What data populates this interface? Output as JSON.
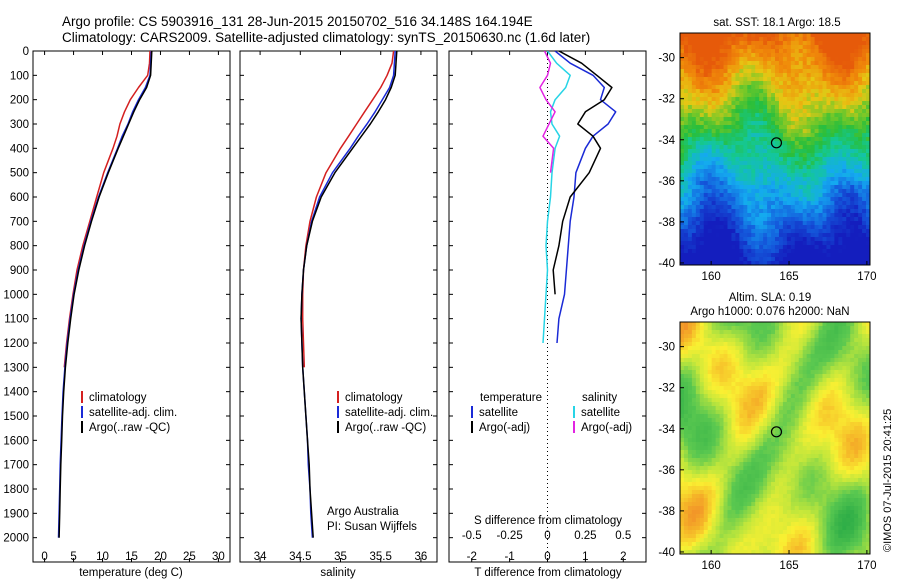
{
  "header": {
    "line1": "Argo profile: CS 5903916_131 28-Jun-2015 20150702_516 34.148S 164.194E",
    "line2": "Climatology: CARS2009. Satellite-adjusted climatology: synTS_20150630.nc (1.6d later)"
  },
  "chart_data": [
    {
      "type": "line",
      "id": "temperature",
      "xlabel": "temperature (deg C)",
      "ylabel": "",
      "xlim": [
        -2,
        32
      ],
      "ylim": [
        2100,
        0
      ],
      "xticks": [
        "0",
        "5",
        "10",
        "15",
        "20",
        "25",
        "30"
      ],
      "yticks": [
        "0",
        "100",
        "200",
        "300",
        "400",
        "500",
        "600",
        "700",
        "800",
        "900",
        "1000",
        "1100",
        "1200",
        "1300",
        "1400",
        "1500",
        "1600",
        "1700",
        "1800",
        "1900",
        "2000"
      ],
      "legend": [
        "climatology",
        "satellite-adj. clim.",
        "Argo(..raw -QC)"
      ],
      "series": [
        {
          "name": "climatology",
          "color": "#d42020",
          "depth": [
            0,
            50,
            100,
            150,
            200,
            250,
            300,
            350,
            400,
            500,
            600,
            700,
            800,
            900,
            1000,
            1100,
            1200,
            1300
          ],
          "values": [
            18.2,
            18.1,
            17.8,
            16.2,
            14.8,
            13.8,
            13.0,
            12.5,
            11.8,
            10.2,
            9.0,
            7.8,
            6.6,
            5.6,
            4.9,
            4.3,
            3.8,
            3.4
          ]
        },
        {
          "name": "satellite-adj. clim.",
          "color": "#1a2ad6",
          "depth": [
            0,
            50,
            100,
            150,
            200,
            250,
            300,
            350,
            400,
            500,
            600,
            700,
            800,
            900,
            1000,
            1100,
            1200,
            1300,
            1400,
            1500,
            1600,
            1700,
            1800,
            1900,
            2000
          ],
          "values": [
            18.4,
            18.3,
            18.2,
            17.4,
            16.2,
            15.2,
            14.4,
            13.4,
            12.6,
            10.9,
            9.3,
            8.0,
            6.8,
            5.8,
            5.0,
            4.4,
            3.9,
            3.5,
            3.2,
            3.0,
            2.85,
            2.7,
            2.6,
            2.5,
            2.4
          ]
        },
        {
          "name": "Argo(..raw -QC)",
          "color": "#000000",
          "depth": [
            0,
            50,
            100,
            150,
            200,
            250,
            300,
            350,
            400,
            500,
            600,
            700,
            800,
            900,
            1000,
            1100,
            1200,
            1300,
            1400,
            1500,
            1600,
            1700,
            1800,
            1900,
            2000
          ],
          "values": [
            18.5,
            18.4,
            18.3,
            17.6,
            16.4,
            15.4,
            14.5,
            13.6,
            12.7,
            11.0,
            9.4,
            8.1,
            6.9,
            5.9,
            5.1,
            4.5,
            4.0,
            3.6,
            3.3,
            3.1,
            2.95,
            2.8,
            2.7,
            2.6,
            2.5
          ]
        }
      ]
    },
    {
      "type": "line",
      "id": "salinity",
      "xlabel": "salinity",
      "ylabel": "",
      "xlim": [
        33.75,
        36.2
      ],
      "ylim": [
        2100,
        0
      ],
      "xticks": [
        "34",
        "34.5",
        "35",
        "35.5",
        "36"
      ],
      "legend": [
        "climatology",
        "satellite-adj. clim.",
        "Argo(..raw -QC)"
      ],
      "annotation": [
        "Argo Australia",
        "PI: Susan Wijffels"
      ],
      "series": [
        {
          "name": "climatology",
          "color": "#d42020",
          "depth": [
            0,
            50,
            100,
            150,
            200,
            250,
            300,
            350,
            400,
            500,
            600,
            700,
            800,
            900,
            1000,
            1100,
            1200,
            1300
          ],
          "values": [
            35.66,
            35.64,
            35.58,
            35.5,
            35.4,
            35.3,
            35.2,
            35.1,
            35.0,
            34.82,
            34.7,
            34.62,
            34.57,
            34.54,
            34.53,
            34.53,
            34.54,
            34.55
          ]
        },
        {
          "name": "satellite-adj. clim.",
          "color": "#1a2ad6",
          "depth": [
            0,
            50,
            100,
            150,
            200,
            250,
            300,
            350,
            400,
            500,
            600,
            700,
            800,
            900,
            1000,
            1100,
            1200,
            1300,
            1400,
            1500,
            1600,
            1700,
            1800,
            1900,
            2000
          ],
          "values": [
            35.68,
            35.67,
            35.66,
            35.61,
            35.52,
            35.43,
            35.33,
            35.22,
            35.12,
            34.9,
            34.74,
            34.64,
            34.58,
            34.54,
            34.52,
            34.51,
            34.52,
            34.53,
            34.55,
            34.57,
            34.59,
            34.6,
            34.62,
            34.63,
            34.65
          ]
        },
        {
          "name": "Argo(..raw -QC)",
          "color": "#000000",
          "depth": [
            0,
            50,
            100,
            150,
            200,
            250,
            300,
            350,
            400,
            500,
            600,
            700,
            800,
            900,
            1000,
            1100,
            1200,
            1300,
            1400,
            1500,
            1600,
            1700,
            1800,
            1900,
            2000
          ],
          "values": [
            35.7,
            35.69,
            35.68,
            35.63,
            35.56,
            35.47,
            35.37,
            35.26,
            35.15,
            34.93,
            34.76,
            34.65,
            34.58,
            34.54,
            34.52,
            34.51,
            34.52,
            34.53,
            34.55,
            34.57,
            34.59,
            34.61,
            34.62,
            34.64,
            34.66
          ]
        }
      ]
    },
    {
      "type": "line",
      "id": "difference",
      "xlabel": "T difference from climatology",
      "xlabel_top": "S difference from climatology",
      "xlim": [
        -2.6,
        2.6
      ],
      "ylim": [
        2100,
        0
      ],
      "xticks": [
        "-2",
        "-1",
        "0",
        "1",
        "2"
      ],
      "xticks_top": [
        "-0.5",
        "-0.25",
        "0",
        "0.25",
        "0.5"
      ],
      "legend_titles": [
        "temperature",
        "salinity"
      ],
      "legend": [
        "satellite",
        "Argo(-adj)",
        "satellite",
        "Argo(-adj)"
      ],
      "series": [
        {
          "name": "satellite",
          "color": "#1a2ad6",
          "depth": [
            0,
            50,
            100,
            150,
            200,
            250,
            300,
            350,
            400,
            500,
            600,
            700,
            800,
            900,
            1000,
            1100,
            1200
          ],
          "values": [
            0.2,
            0.6,
            1.2,
            1.5,
            1.4,
            1.8,
            1.6,
            1.2,
            1.0,
            0.75,
            0.7,
            0.6,
            0.55,
            0.5,
            0.45,
            0.3,
            0.25
          ]
        },
        {
          "name": "Argo(-adj)",
          "color": "#000000",
          "depth": [
            0,
            50,
            100,
            150,
            200,
            250,
            300,
            350,
            400,
            500,
            600,
            700,
            800,
            900,
            1000
          ],
          "values": [
            0.3,
            0.9,
            1.3,
            1.7,
            1.5,
            1.0,
            0.8,
            1.2,
            1.4,
            1.1,
            0.6,
            0.4,
            0.3,
            0.15,
            0.2
          ]
        },
        {
          "name": "satellite",
          "color": "#27d4e6",
          "depth": [
            0,
            50,
            100,
            150,
            200,
            250,
            300,
            350,
            400,
            500,
            600,
            700,
            800,
            900,
            1000,
            1100,
            1200
          ],
          "values": [
            0.0,
            0.06,
            0.15,
            0.12,
            0.05,
            0.02,
            0.03,
            0.08,
            0.05,
            0.03,
            0.02,
            0.0,
            -0.01,
            0.0,
            -0.01,
            -0.02,
            -0.03
          ]
        },
        {
          "name": "Argo(-adj)",
          "color": "#e224e2",
          "depth": [
            0,
            50,
            100,
            150,
            200,
            250,
            300,
            350,
            400,
            500
          ],
          "values": [
            -0.02,
            0.02,
            0.0,
            -0.05,
            -0.01,
            0.05,
            0.01,
            -0.03,
            0.04,
            0.02
          ]
        }
      ]
    }
  ],
  "maps": [
    {
      "id": "sst",
      "title_lines": [
        "sat. SST: 18.1  Argo: 18.5"
      ],
      "xticks": [
        "160",
        "165",
        "170"
      ],
      "yticks": [
        "-30",
        "-32",
        "-34",
        "-36",
        "-38",
        "-40"
      ],
      "lon_range": [
        158,
        170.2
      ],
      "lat_range": [
        -40.1,
        -28.8
      ],
      "argo_lon": 164.194,
      "argo_lat": -34.148
    },
    {
      "id": "sla",
      "title_lines": [
        "Altim. SLA: 0.19",
        "Argo h1000: 0.076 h2000: NaN"
      ],
      "xticks": [
        "160",
        "165",
        "170"
      ],
      "yticks": [
        "-30",
        "-32",
        "-34",
        "-36",
        "-38",
        "-40"
      ],
      "lon_range": [
        158,
        170.2
      ],
      "lat_range": [
        -40.1,
        -28.8
      ],
      "argo_lon": 164.194,
      "argo_lat": -34.148
    }
  ],
  "copyright": "©IMOS 07-Jul-2015 20:41:25"
}
